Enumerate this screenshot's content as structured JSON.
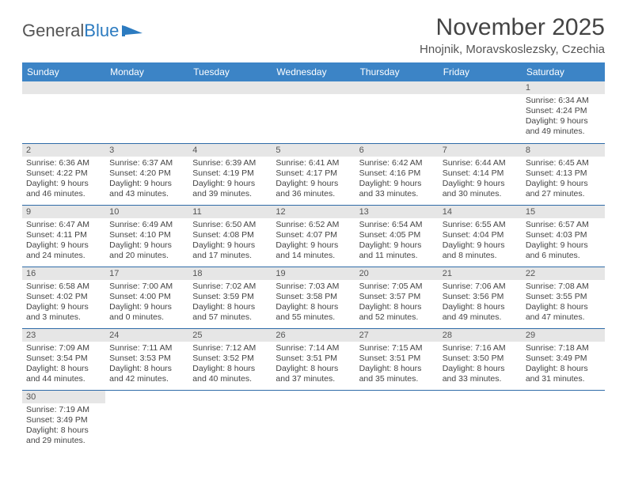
{
  "logo": {
    "text1": "General",
    "text2": "Blue"
  },
  "title": "November 2025",
  "location": "Hnojnik, Moravskoslezsky, Czechia",
  "colors": {
    "header_bg": "#3c84c6",
    "header_text": "#ffffff",
    "row_divider": "#2f6ba8",
    "daynum_bg": "#e6e6e6",
    "logo_accent": "#2c7bc0"
  },
  "weekdays": [
    "Sunday",
    "Monday",
    "Tuesday",
    "Wednesday",
    "Thursday",
    "Friday",
    "Saturday"
  ],
  "weeks": [
    [
      null,
      null,
      null,
      null,
      null,
      null,
      {
        "n": 1,
        "sunrise": "6:34 AM",
        "sunset": "4:24 PM",
        "dl_h": 9,
        "dl_m": 49
      }
    ],
    [
      {
        "n": 2,
        "sunrise": "6:36 AM",
        "sunset": "4:22 PM",
        "dl_h": 9,
        "dl_m": 46
      },
      {
        "n": 3,
        "sunrise": "6:37 AM",
        "sunset": "4:20 PM",
        "dl_h": 9,
        "dl_m": 43
      },
      {
        "n": 4,
        "sunrise": "6:39 AM",
        "sunset": "4:19 PM",
        "dl_h": 9,
        "dl_m": 39
      },
      {
        "n": 5,
        "sunrise": "6:41 AM",
        "sunset": "4:17 PM",
        "dl_h": 9,
        "dl_m": 36
      },
      {
        "n": 6,
        "sunrise": "6:42 AM",
        "sunset": "4:16 PM",
        "dl_h": 9,
        "dl_m": 33
      },
      {
        "n": 7,
        "sunrise": "6:44 AM",
        "sunset": "4:14 PM",
        "dl_h": 9,
        "dl_m": 30
      },
      {
        "n": 8,
        "sunrise": "6:45 AM",
        "sunset": "4:13 PM",
        "dl_h": 9,
        "dl_m": 27
      }
    ],
    [
      {
        "n": 9,
        "sunrise": "6:47 AM",
        "sunset": "4:11 PM",
        "dl_h": 9,
        "dl_m": 24
      },
      {
        "n": 10,
        "sunrise": "6:49 AM",
        "sunset": "4:10 PM",
        "dl_h": 9,
        "dl_m": 20
      },
      {
        "n": 11,
        "sunrise": "6:50 AM",
        "sunset": "4:08 PM",
        "dl_h": 9,
        "dl_m": 17
      },
      {
        "n": 12,
        "sunrise": "6:52 AM",
        "sunset": "4:07 PM",
        "dl_h": 9,
        "dl_m": 14
      },
      {
        "n": 13,
        "sunrise": "6:54 AM",
        "sunset": "4:05 PM",
        "dl_h": 9,
        "dl_m": 11
      },
      {
        "n": 14,
        "sunrise": "6:55 AM",
        "sunset": "4:04 PM",
        "dl_h": 9,
        "dl_m": 8
      },
      {
        "n": 15,
        "sunrise": "6:57 AM",
        "sunset": "4:03 PM",
        "dl_h": 9,
        "dl_m": 6
      }
    ],
    [
      {
        "n": 16,
        "sunrise": "6:58 AM",
        "sunset": "4:02 PM",
        "dl_h": 9,
        "dl_m": 3
      },
      {
        "n": 17,
        "sunrise": "7:00 AM",
        "sunset": "4:00 PM",
        "dl_h": 9,
        "dl_m": 0
      },
      {
        "n": 18,
        "sunrise": "7:02 AM",
        "sunset": "3:59 PM",
        "dl_h": 8,
        "dl_m": 57
      },
      {
        "n": 19,
        "sunrise": "7:03 AM",
        "sunset": "3:58 PM",
        "dl_h": 8,
        "dl_m": 55
      },
      {
        "n": 20,
        "sunrise": "7:05 AM",
        "sunset": "3:57 PM",
        "dl_h": 8,
        "dl_m": 52
      },
      {
        "n": 21,
        "sunrise": "7:06 AM",
        "sunset": "3:56 PM",
        "dl_h": 8,
        "dl_m": 49
      },
      {
        "n": 22,
        "sunrise": "7:08 AM",
        "sunset": "3:55 PM",
        "dl_h": 8,
        "dl_m": 47
      }
    ],
    [
      {
        "n": 23,
        "sunrise": "7:09 AM",
        "sunset": "3:54 PM",
        "dl_h": 8,
        "dl_m": 44
      },
      {
        "n": 24,
        "sunrise": "7:11 AM",
        "sunset": "3:53 PM",
        "dl_h": 8,
        "dl_m": 42
      },
      {
        "n": 25,
        "sunrise": "7:12 AM",
        "sunset": "3:52 PM",
        "dl_h": 8,
        "dl_m": 40
      },
      {
        "n": 26,
        "sunrise": "7:14 AM",
        "sunset": "3:51 PM",
        "dl_h": 8,
        "dl_m": 37
      },
      {
        "n": 27,
        "sunrise": "7:15 AM",
        "sunset": "3:51 PM",
        "dl_h": 8,
        "dl_m": 35
      },
      {
        "n": 28,
        "sunrise": "7:16 AM",
        "sunset": "3:50 PM",
        "dl_h": 8,
        "dl_m": 33
      },
      {
        "n": 29,
        "sunrise": "7:18 AM",
        "sunset": "3:49 PM",
        "dl_h": 8,
        "dl_m": 31
      }
    ],
    [
      {
        "n": 30,
        "sunrise": "7:19 AM",
        "sunset": "3:49 PM",
        "dl_h": 8,
        "dl_m": 29
      },
      null,
      null,
      null,
      null,
      null,
      null
    ]
  ]
}
